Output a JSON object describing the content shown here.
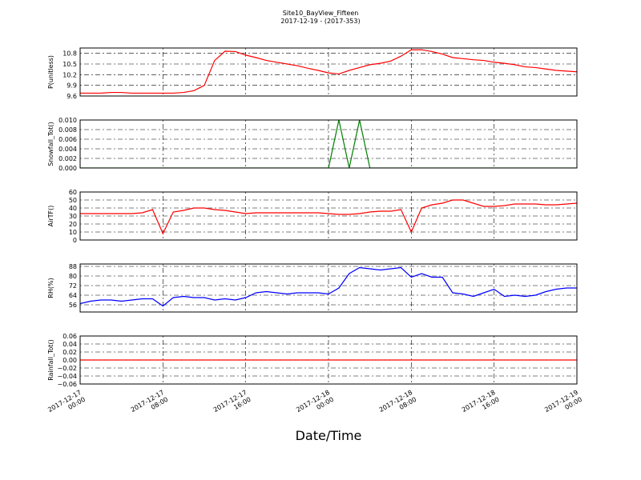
{
  "chart_data": {
    "type": "line",
    "title": "Site10_BayView_Fifteen",
    "subtitle": "2017-12-19 - (2017-353)",
    "xlabel": "Date/Time",
    "xlim": [
      "2017-12-17 00:00",
      "2017-12-19 00:00"
    ],
    "xticks": [
      "2017-12-17 00:00",
      "2017-12-17 08:00",
      "2017-12-17 16:00",
      "2017-12-18 00:00",
      "2017-12-18 08:00",
      "2017-12-18 16:00",
      "2017-12-19 00:00"
    ],
    "grid": true,
    "x": [
      "2017-12-17 00:00",
      "2017-12-17 01:00",
      "2017-12-17 02:00",
      "2017-12-17 03:00",
      "2017-12-17 04:00",
      "2017-12-17 05:00",
      "2017-12-17 06:00",
      "2017-12-17 07:00",
      "2017-12-17 08:00",
      "2017-12-17 09:00",
      "2017-12-17 10:00",
      "2017-12-17 11:00",
      "2017-12-17 12:00",
      "2017-12-17 13:00",
      "2017-12-17 14:00",
      "2017-12-17 15:00",
      "2017-12-17 16:00",
      "2017-12-17 17:00",
      "2017-12-17 18:00",
      "2017-12-17 19:00",
      "2017-12-17 20:00",
      "2017-12-17 21:00",
      "2017-12-17 22:00",
      "2017-12-17 23:00",
      "2017-12-18 00:00",
      "2017-12-18 01:00",
      "2017-12-18 02:00",
      "2017-12-18 03:00",
      "2017-12-18 04:00",
      "2017-12-18 05:00",
      "2017-12-18 06:00",
      "2017-12-18 07:00",
      "2017-12-18 08:00",
      "2017-12-18 09:00",
      "2017-12-18 10:00",
      "2017-12-18 11:00",
      "2017-12-18 12:00",
      "2017-12-18 13:00",
      "2017-12-18 14:00",
      "2017-12-18 15:00",
      "2017-12-18 16:00",
      "2017-12-18 17:00",
      "2017-12-18 18:00",
      "2017-12-18 19:00",
      "2017-12-18 20:00",
      "2017-12-18 21:00",
      "2017-12-18 22:00",
      "2017-12-18 23:00",
      "2017-12-19 00:00"
    ],
    "panels": [
      {
        "ylabel": "P(unitless)",
        "color": "#ff0000",
        "ylim": [
          9.6,
          10.95
        ],
        "yticks": [
          9.6,
          9.9,
          10.2,
          10.5,
          10.8
        ],
        "values": [
          9.68,
          9.68,
          9.68,
          9.7,
          9.7,
          9.68,
          9.68,
          9.68,
          9.68,
          9.68,
          9.7,
          9.75,
          9.9,
          10.6,
          10.86,
          10.85,
          10.75,
          10.68,
          10.6,
          10.55,
          10.5,
          10.45,
          10.38,
          10.32,
          10.25,
          10.22,
          10.32,
          10.4,
          10.48,
          10.52,
          10.58,
          10.72,
          10.9,
          10.9,
          10.85,
          10.78,
          10.68,
          10.65,
          10.62,
          10.6,
          10.55,
          10.52,
          10.48,
          10.42,
          10.4,
          10.36,
          10.32,
          10.3,
          10.28
        ]
      },
      {
        "ylabel": "Snowfall_Tot()",
        "color": "#007f00",
        "ylim": [
          0,
          0.01
        ],
        "yticks": [
          {
            "value": 0,
            "label": "0.000"
          },
          {
            "value": 0.002,
            "label": "0.002"
          },
          {
            "value": 0.004,
            "label": "0.004"
          },
          {
            "value": 0.006,
            "label": "0.006"
          },
          {
            "value": 0.008,
            "label": "0.008"
          },
          {
            "value": 0.01,
            "label": "0.010"
          }
        ],
        "values": [
          0,
          0,
          0,
          0,
          0,
          0,
          0,
          0,
          0,
          0,
          0,
          0,
          0,
          0,
          0,
          0,
          0,
          0,
          0,
          0,
          0,
          0,
          0,
          0,
          0,
          0.01,
          0,
          0.01,
          0,
          0,
          0,
          0,
          0,
          0,
          0,
          0,
          0,
          0,
          0,
          0,
          0,
          0,
          0,
          0,
          0,
          0,
          0,
          0,
          0
        ]
      },
      {
        "ylabel": "AirTF()",
        "color": "#ff0000",
        "ylim": [
          0,
          60
        ],
        "yticks": [
          0,
          10,
          20,
          30,
          40,
          50,
          60
        ],
        "values": [
          33,
          33,
          33,
          33,
          33,
          33,
          34,
          38,
          8,
          35,
          37,
          40,
          40,
          38,
          37,
          35,
          33,
          34,
          34,
          34,
          34,
          34,
          34,
          34,
          33,
          32,
          32,
          33,
          35,
          36,
          36,
          38,
          10,
          40,
          44,
          46,
          50,
          50,
          46,
          42,
          42,
          43,
          45,
          45,
          45,
          44,
          44,
          45,
          46
        ]
      },
      {
        "ylabel": "RH(%)",
        "color": "#0000ff",
        "ylim": [
          50,
          90
        ],
        "yticks": [
          56,
          64,
          72,
          80,
          88
        ],
        "values": [
          57,
          59,
          60,
          60,
          59,
          60,
          61,
          61,
          55,
          62,
          63,
          62,
          62,
          60,
          61,
          60,
          62,
          66,
          67,
          66,
          65,
          66,
          66,
          66,
          65,
          70,
          82,
          87,
          86,
          85,
          86,
          87,
          79,
          82,
          79,
          79,
          66,
          65,
          63,
          66,
          69,
          63,
          64,
          63,
          64,
          67,
          69,
          70,
          70
        ]
      },
      {
        "ylabel": "Rainfall_Tot()",
        "color": "#ff0000",
        "ylim": [
          -0.06,
          0.06
        ],
        "yticks": [
          {
            "value": -0.06,
            "label": "−0.06"
          },
          {
            "value": -0.04,
            "label": "−0.04"
          },
          {
            "value": -0.02,
            "label": "−0.02"
          },
          {
            "value": 0,
            "label": "0.00"
          },
          {
            "value": 0.02,
            "label": "0.02"
          },
          {
            "value": 0.04,
            "label": "0.04"
          },
          {
            "value": 0.06,
            "label": "0.06"
          }
        ],
        "values": [
          0,
          0,
          0,
          0,
          0,
          0,
          0,
          0,
          0,
          0,
          0,
          0,
          0,
          0,
          0,
          0,
          0,
          0,
          0,
          0,
          0,
          0,
          0,
          0,
          0,
          0,
          0,
          0,
          0,
          0,
          0,
          0,
          0,
          0,
          0,
          0,
          0,
          0,
          0,
          0,
          0,
          0,
          0,
          0,
          0,
          0,
          0,
          0,
          0
        ]
      }
    ]
  }
}
